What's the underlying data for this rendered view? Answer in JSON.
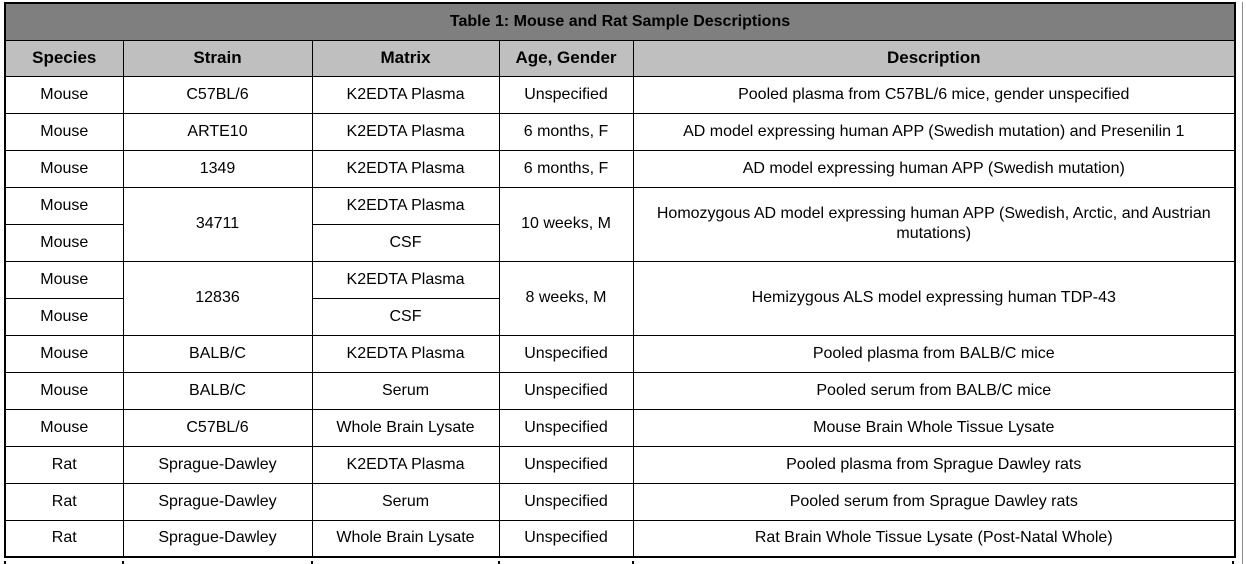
{
  "table": {
    "title": "Table 1: Mouse and Rat Sample Descriptions",
    "colors": {
      "title_bg": "#7f7f7f",
      "title_text": "#ffffff",
      "header_bg": "#bfbfbf",
      "border": "#000000",
      "body_bg": "#ffffff"
    },
    "headers": [
      "Species",
      "Strain",
      "Matrix",
      "Age, Gender",
      "Description"
    ],
    "rows": [
      [
        {
          "t": "Mouse"
        },
        {
          "t": "C57BL/6"
        },
        {
          "t": "K2EDTA Plasma"
        },
        {
          "t": "Unspecified"
        },
        {
          "t": "Pooled plasma from C57BL/6 mice, gender unspecified"
        }
      ],
      [
        {
          "t": "Mouse"
        },
        {
          "t": "ARTE10"
        },
        {
          "t": "K2EDTA Plasma"
        },
        {
          "t": "6 months, F"
        },
        {
          "t": "AD model expressing human APP (Swedish mutation) and Presenilin 1"
        }
      ],
      [
        {
          "t": "Mouse"
        },
        {
          "t": "1349"
        },
        {
          "t": "K2EDTA Plasma"
        },
        {
          "t": "6 months, F"
        },
        {
          "t": "AD model expressing human APP (Swedish mutation)"
        }
      ],
      [
        {
          "t": "Mouse"
        },
        {
          "t": "34711",
          "rowspan": 2
        },
        {
          "t": "K2EDTA Plasma"
        },
        {
          "t": "10 weeks, M",
          "rowspan": 2
        },
        {
          "t": "Homozygous AD model expressing human APP (Swedish, Arctic, and Austrian mutations)",
          "rowspan": 2
        }
      ],
      [
        {
          "t": "Mouse"
        },
        {
          "t": "CSF"
        }
      ],
      [
        {
          "t": "Mouse"
        },
        {
          "t": "12836",
          "rowspan": 2
        },
        {
          "t": "K2EDTA Plasma"
        },
        {
          "t": "8 weeks, M",
          "rowspan": 2
        },
        {
          "t": "Hemizygous ALS model expressing human TDP-43",
          "rowspan": 2
        }
      ],
      [
        {
          "t": "Mouse"
        },
        {
          "t": "CSF"
        }
      ],
      [
        {
          "t": "Mouse"
        },
        {
          "t": "BALB/C"
        },
        {
          "t": "K2EDTA Plasma"
        },
        {
          "t": "Unspecified"
        },
        {
          "t": "Pooled plasma from BALB/C mice"
        }
      ],
      [
        {
          "t": "Mouse"
        },
        {
          "t": "BALB/C"
        },
        {
          "t": "Serum"
        },
        {
          "t": "Unspecified"
        },
        {
          "t": "Pooled serum from BALB/C mice"
        }
      ],
      [
        {
          "t": "Mouse"
        },
        {
          "t": "C57BL/6"
        },
        {
          "t": "Whole Brain Lysate"
        },
        {
          "t": "Unspecified"
        },
        {
          "t": "Mouse Brain Whole Tissue Lysate"
        }
      ],
      [
        {
          "t": "Rat"
        },
        {
          "t": "Sprague-Dawley"
        },
        {
          "t": "K2EDTA Plasma"
        },
        {
          "t": "Unspecified"
        },
        {
          "t": "Pooled plasma from Sprague Dawley rats"
        }
      ],
      [
        {
          "t": "Rat"
        },
        {
          "t": "Sprague-Dawley"
        },
        {
          "t": "Serum"
        },
        {
          "t": "Unspecified"
        },
        {
          "t": "Pooled serum from Sprague Dawley rats"
        }
      ],
      [
        {
          "t": "Rat"
        },
        {
          "t": "Sprague-Dawley"
        },
        {
          "t": "Whole Brain Lysate"
        },
        {
          "t": "Unspecified"
        },
        {
          "t": "Rat Brain Whole Tissue Lysate (Post-Natal Whole)"
        }
      ]
    ]
  }
}
